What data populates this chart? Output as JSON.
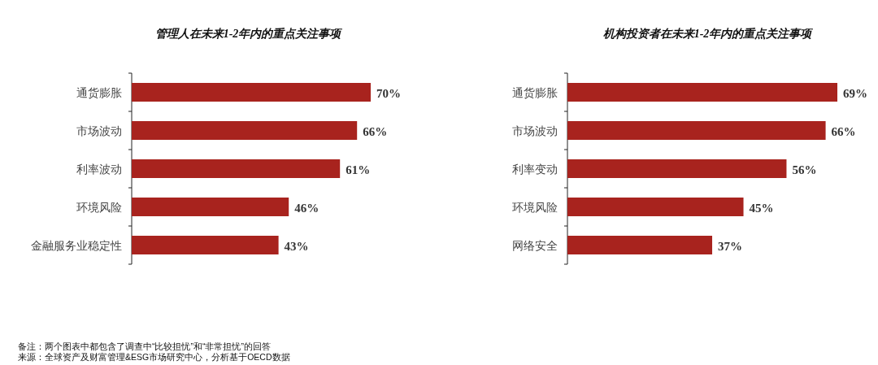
{
  "chart_data": [
    {
      "type": "bar",
      "orientation": "horizontal",
      "title": "管理人在未来1-2年内的重点关注事项",
      "categories": [
        "通货膨胀",
        "市场波动",
        "利率波动",
        "环境风险",
        "金融服务业稳定性"
      ],
      "series": [
        {
          "color": "#a8231e",
          "values": [
            70,
            66,
            61,
            46,
            43
          ],
          "value_labels": [
            "70%",
            "66%",
            "61%",
            "46%",
            "43%"
          ]
        }
      ],
      "annotations": [
        "备注：两个图表中都包含了调查中“比较担忧”和“非常担忧”的回答",
        "来源：全球资产及财富管理&ESG市场研究中心，分析基于OECD数据"
      ]
    },
    {
      "type": "bar",
      "orientation": "horizontal",
      "title": "机构投资者在未来1-2年内的重点关注事项",
      "categories": [
        "通货膨胀",
        "市场波动",
        "利率变动",
        "环境风险",
        "网络安全"
      ],
      "series": [
        {
          "color": "#a8231e",
          "values": [
            69,
            66,
            56,
            45,
            37
          ],
          "value_labels": [
            "69%",
            "66%",
            "56%",
            "45%",
            "37%"
          ]
        }
      ]
    }
  ]
}
